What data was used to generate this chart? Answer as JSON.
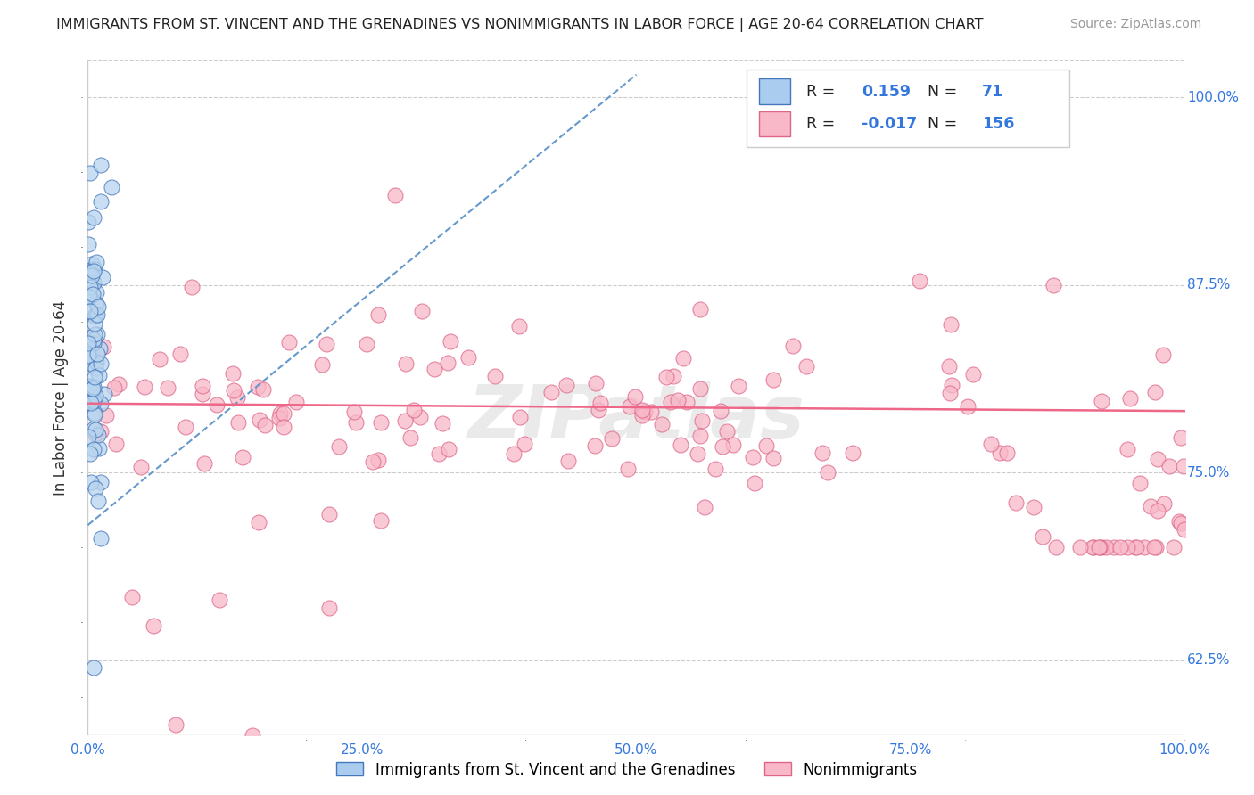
{
  "title": "IMMIGRANTS FROM ST. VINCENT AND THE GRENADINES VS NONIMMIGRANTS IN LABOR FORCE | AGE 20-64 CORRELATION CHART",
  "source": "Source: ZipAtlas.com",
  "ylabel": "In Labor Force | Age 20-64",
  "xlim": [
    0.0,
    1.0
  ],
  "ylim": [
    0.575,
    1.025
  ],
  "yticks": [
    0.625,
    0.75,
    0.875,
    1.0
  ],
  "ytick_labels": [
    "62.5%",
    "75.0%",
    "87.5%",
    "100.0%"
  ],
  "xticks": [
    0.0,
    0.25,
    0.5,
    0.75,
    1.0
  ],
  "xtick_labels": [
    "0.0%",
    "25.0%",
    "50.0%",
    "75.0%",
    "100.0%"
  ],
  "blue_R": 0.159,
  "blue_N": 71,
  "pink_R": -0.017,
  "pink_N": 156,
  "blue_color": "#b8d4ee",
  "pink_color": "#f8b8c8",
  "blue_edge": "#4477bb",
  "pink_edge": "#dd6688",
  "blue_trend_color": "#6699cc",
  "pink_trend_color": "#ee6688",
  "watermark": "ZIPatlas",
  "legend_blue_color": "#aaccee",
  "legend_pink_color": "#f9b8c8"
}
